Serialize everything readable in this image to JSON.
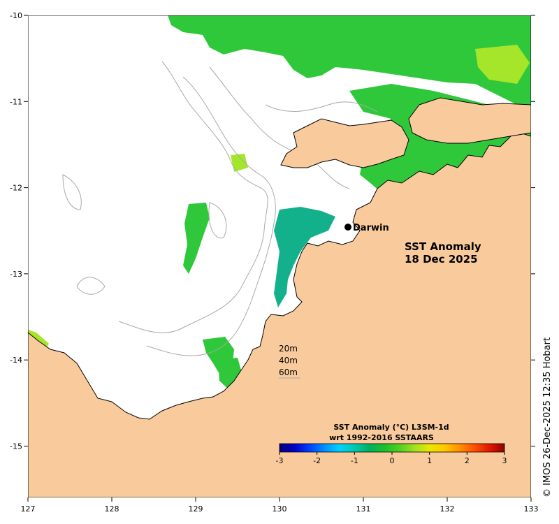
{
  "map": {
    "title_line1": "SST Anomaly",
    "title_line2": "18 Dec 2025",
    "place_label": "Darwin",
    "credit": "© IMOS 26-Dec-2025 12:35 Hobart",
    "contours": [
      "20m",
      "40m",
      "60m"
    ],
    "legend": {
      "title_line1": "SST Anomaly (°C) L3SM-1d",
      "title_line2": "wrt 1992-2016 SSTAARS",
      "ticks": [
        "-3",
        "-2",
        "-1",
        "0",
        "1",
        "2",
        "3"
      ]
    },
    "lon_ticks": [
      "127",
      "128",
      "129",
      "130",
      "131",
      "132",
      "133"
    ],
    "lat_ticks": [
      "-10",
      "-11",
      "-12",
      "-13",
      "-14",
      "-15"
    ],
    "colors": {
      "land": "#f9cb9c",
      "ocean": "#ffffff",
      "anomaly_green": "#2fc83a",
      "anomaly_light": "#a6e62a",
      "anomaly_teal": "#13b08c",
      "coastline": "#000000",
      "contour": "#a8a8a8"
    },
    "colormap": [
      "#00007a",
      "#0000c8",
      "#0040ff",
      "#0090ff",
      "#00d0ff",
      "#00c8b0",
      "#00b060",
      "#1ac02c",
      "#50d020",
      "#a0e020",
      "#e8e800",
      "#ffc800",
      "#ff9000",
      "#ff5000",
      "#e01800",
      "#900000"
    ]
  }
}
